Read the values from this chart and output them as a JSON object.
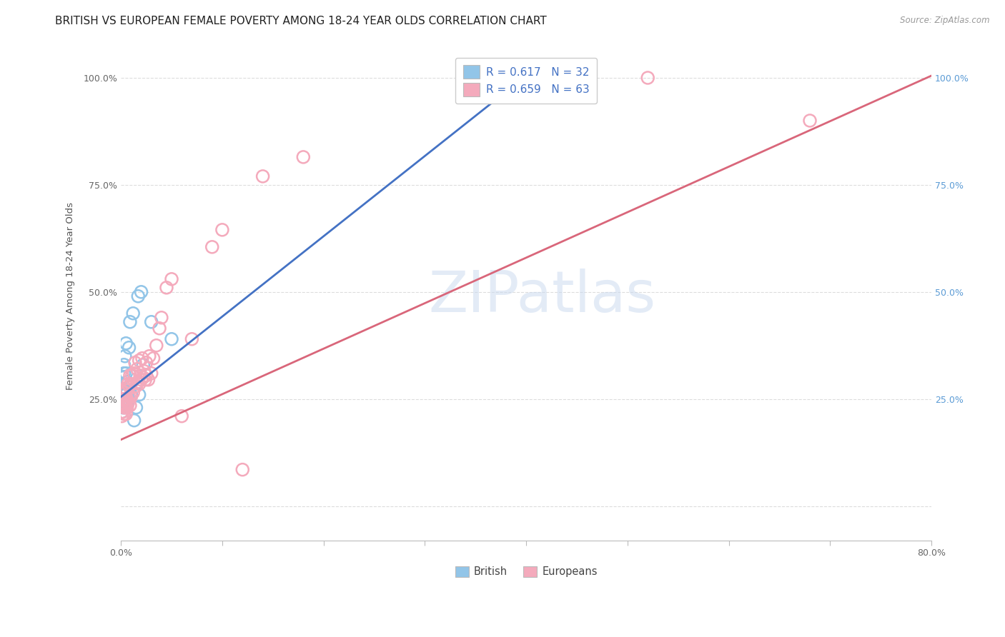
{
  "title": "BRITISH VS EUROPEAN FEMALE POVERTY AMONG 18-24 YEAR OLDS CORRELATION CHART",
  "source": "Source: ZipAtlas.com",
  "ylabel": "Female Poverty Among 18-24 Year Olds",
  "legend_british": "British",
  "legend_europeans": "Europeans",
  "R_british": 0.617,
  "N_british": 32,
  "R_europeans": 0.659,
  "N_europeans": 63,
  "british_color": "#92C5E8",
  "european_color": "#F4AABC",
  "british_line_color": "#4472C4",
  "european_line_color": "#D9667A",
  "watermark_text": "ZIPatlas",
  "watermark_color": "#C8D8EE",
  "xlim": [
    0.0,
    0.8
  ],
  "ylim": [
    0.0,
    1.0
  ],
  "x_ticks": [
    0.0,
    0.1,
    0.2,
    0.3,
    0.4,
    0.5,
    0.6,
    0.7,
    0.8
  ],
  "x_tick_labels": [
    "0.0%",
    "",
    "",
    "",
    "",
    "",
    "",
    "",
    "80.0%"
  ],
  "y_ticks": [
    0.0,
    0.25,
    0.5,
    0.75,
    1.0
  ],
  "y_tick_labels_left": [
    "",
    "25.0%",
    "50.0%",
    "75.0%",
    "100.0%"
  ],
  "y_tick_labels_right": [
    "25.0%",
    "50.0%",
    "75.0%",
    "100.0%"
  ],
  "background_color": "#FFFFFF",
  "grid_color": "#DDDDDD",
  "title_fontsize": 11,
  "axis_label_fontsize": 9.5,
  "tick_fontsize": 9,
  "right_tick_color": "#5B9BD5",
  "british_line_x": [
    0.0,
    0.4
  ],
  "british_line_y": [
    0.255,
    1.005
  ],
  "european_line_x": [
    0.0,
    0.8
  ],
  "european_line_y": [
    0.155,
    1.005
  ],
  "british_x": [
    0.001,
    0.001,
    0.001,
    0.002,
    0.002,
    0.002,
    0.002,
    0.003,
    0.003,
    0.003,
    0.003,
    0.004,
    0.004,
    0.004,
    0.005,
    0.005,
    0.005,
    0.006,
    0.006,
    0.007,
    0.008,
    0.009,
    0.01,
    0.012,
    0.013,
    0.015,
    0.017,
    0.018,
    0.02,
    0.022,
    0.03,
    0.05
  ],
  "british_y": [
    0.22,
    0.24,
    0.26,
    0.23,
    0.25,
    0.27,
    0.3,
    0.25,
    0.27,
    0.31,
    0.33,
    0.25,
    0.27,
    0.35,
    0.26,
    0.31,
    0.38,
    0.24,
    0.29,
    0.25,
    0.37,
    0.43,
    0.26,
    0.45,
    0.2,
    0.23,
    0.49,
    0.26,
    0.5,
    0.33,
    0.43,
    0.39
  ],
  "european_x": [
    0.001,
    0.001,
    0.001,
    0.002,
    0.002,
    0.002,
    0.003,
    0.003,
    0.003,
    0.003,
    0.004,
    0.004,
    0.004,
    0.005,
    0.005,
    0.005,
    0.005,
    0.006,
    0.006,
    0.006,
    0.007,
    0.007,
    0.008,
    0.008,
    0.009,
    0.009,
    0.01,
    0.01,
    0.011,
    0.012,
    0.013,
    0.014,
    0.015,
    0.016,
    0.017,
    0.018,
    0.018,
    0.019,
    0.02,
    0.021,
    0.022,
    0.023,
    0.024,
    0.025,
    0.025,
    0.027,
    0.028,
    0.03,
    0.032,
    0.035,
    0.038,
    0.04,
    0.045,
    0.05,
    0.06,
    0.07,
    0.09,
    0.1,
    0.12,
    0.14,
    0.18,
    0.52,
    0.68
  ],
  "european_y": [
    0.21,
    0.22,
    0.24,
    0.22,
    0.235,
    0.25,
    0.215,
    0.23,
    0.25,
    0.265,
    0.23,
    0.25,
    0.265,
    0.215,
    0.23,
    0.25,
    0.275,
    0.23,
    0.25,
    0.27,
    0.24,
    0.285,
    0.255,
    0.28,
    0.235,
    0.305,
    0.255,
    0.285,
    0.305,
    0.265,
    0.31,
    0.335,
    0.28,
    0.32,
    0.29,
    0.285,
    0.34,
    0.305,
    0.295,
    0.345,
    0.3,
    0.315,
    0.295,
    0.305,
    0.335,
    0.295,
    0.35,
    0.31,
    0.345,
    0.375,
    0.415,
    0.44,
    0.51,
    0.53,
    0.21,
    0.39,
    0.605,
    0.645,
    0.085,
    0.77,
    0.815,
    1.0,
    0.9
  ]
}
